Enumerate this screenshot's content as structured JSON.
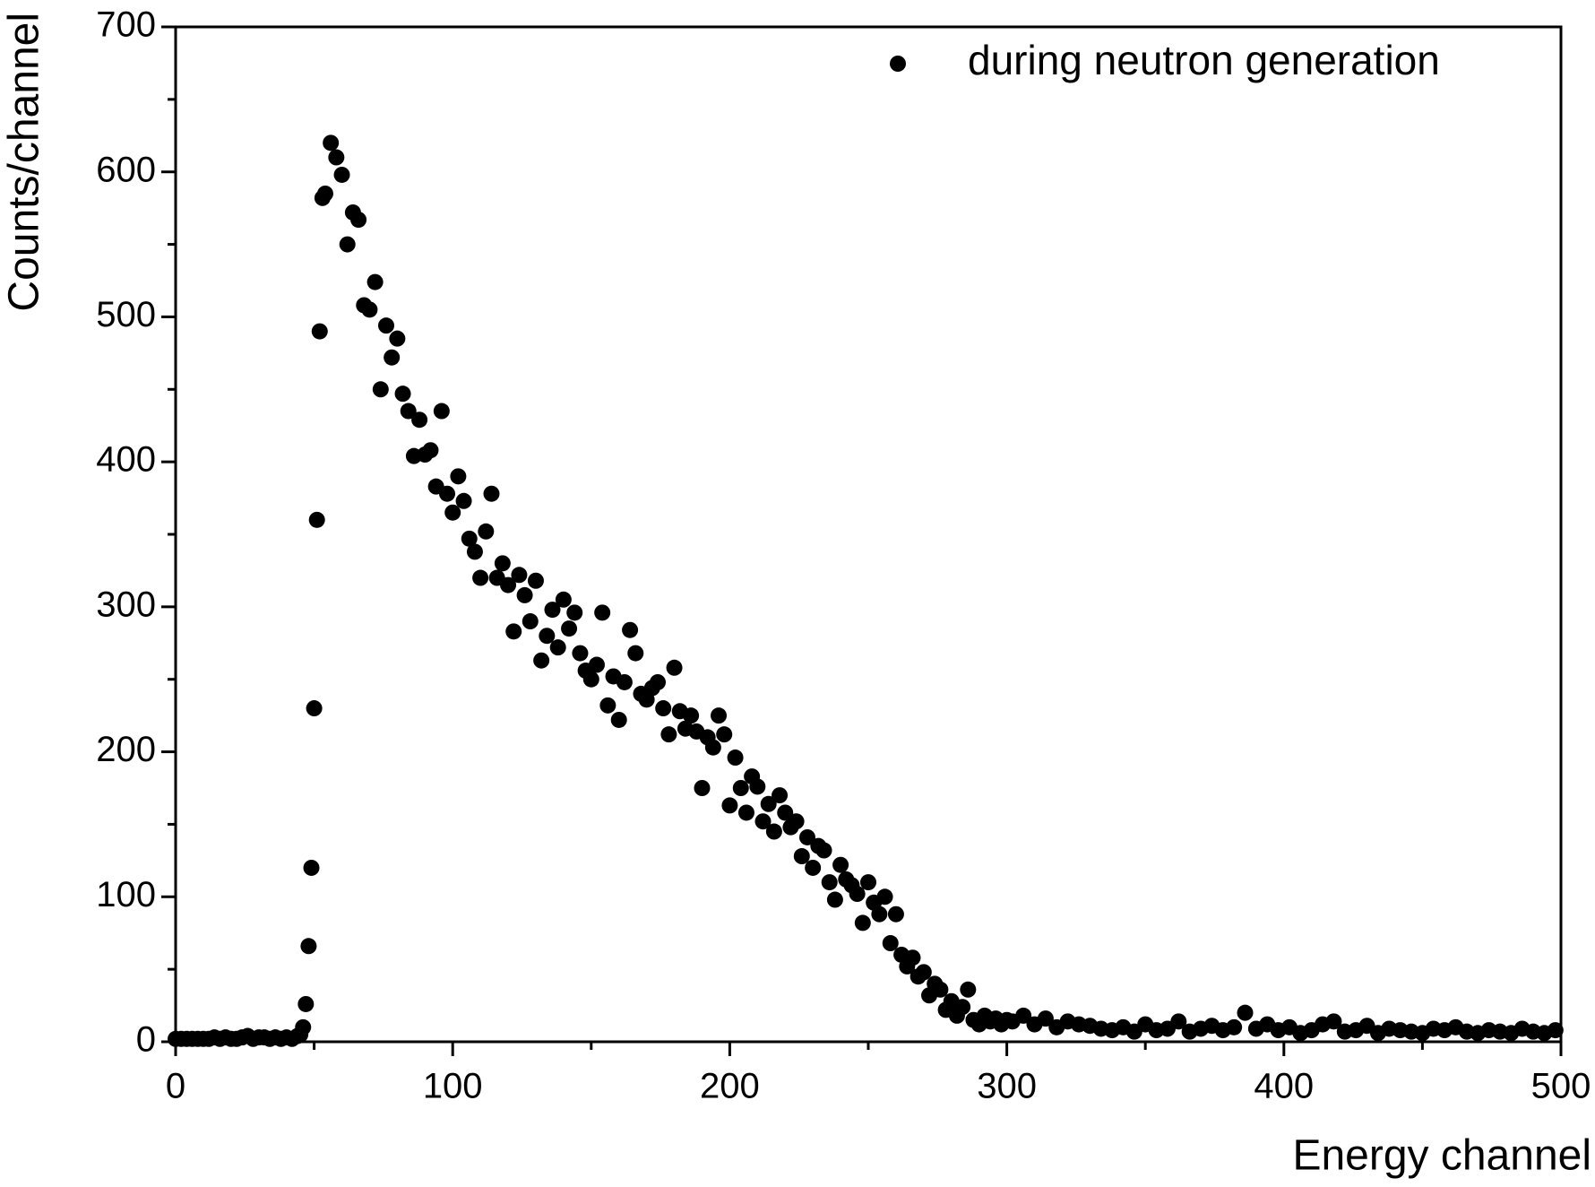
{
  "chart_data": {
    "type": "scatter",
    "xlabel": "Energy channel",
    "ylabel": "Counts/channel",
    "x": [
      0,
      2,
      4,
      6,
      8,
      10,
      12,
      14,
      16,
      18,
      20,
      22,
      24,
      26,
      28,
      30,
      32,
      34,
      36,
      38,
      40,
      42,
      44,
      45,
      46,
      47,
      48,
      49,
      50,
      51,
      52,
      53,
      54,
      56,
      58,
      60,
      62,
      64,
      66,
      68,
      70,
      72,
      74,
      76,
      78,
      80,
      82,
      84,
      86,
      88,
      90,
      92,
      94,
      96,
      98,
      100,
      102,
      104,
      106,
      108,
      110,
      112,
      114,
      116,
      118,
      120,
      122,
      124,
      126,
      128,
      130,
      132,
      134,
      136,
      138,
      140,
      142,
      144,
      146,
      148,
      150,
      152,
      154,
      156,
      158,
      160,
      162,
      164,
      166,
      168,
      170,
      172,
      174,
      176,
      178,
      180,
      182,
      184,
      186,
      188,
      190,
      192,
      194,
      196,
      198,
      200,
      202,
      204,
      206,
      208,
      210,
      212,
      214,
      216,
      218,
      220,
      222,
      224,
      226,
      228,
      230,
      232,
      234,
      236,
      238,
      240,
      242,
      244,
      246,
      248,
      250,
      252,
      254,
      256,
      258,
      260,
      262,
      264,
      266,
      268,
      270,
      272,
      274,
      276,
      278,
      280,
      282,
      284,
      286,
      288,
      290,
      292,
      294,
      296,
      298,
      300,
      302,
      306,
      310,
      314,
      318,
      322,
      326,
      330,
      334,
      338,
      342,
      346,
      350,
      354,
      358,
      362,
      366,
      370,
      374,
      378,
      382,
      386,
      390,
      394,
      398,
      402,
      406,
      410,
      414,
      418,
      422,
      426,
      430,
      434,
      438,
      442,
      446,
      450,
      454,
      458,
      462,
      466,
      470,
      474,
      478,
      482,
      486,
      490,
      494,
      498
    ],
    "series": [
      {
        "name": "during neutron generation",
        "color": "#000000",
        "values": [
          2,
          2,
          2,
          2,
          2,
          2,
          2,
          3,
          2,
          3,
          2,
          2,
          3,
          4,
          2,
          3,
          3,
          2,
          3,
          2,
          3,
          2,
          4,
          5,
          10,
          26,
          66,
          120,
          230,
          360,
          490,
          582,
          585,
          620,
          610,
          598,
          550,
          572,
          567,
          508,
          505,
          524,
          450,
          494,
          472,
          485,
          447,
          435,
          404,
          429,
          405,
          408,
          383,
          435,
          378,
          365,
          390,
          373,
          347,
          338,
          320,
          352,
          378,
          320,
          330,
          315,
          283,
          322,
          308,
          290,
          318,
          263,
          280,
          298,
          272,
          305,
          285,
          296,
          268,
          256,
          250,
          260,
          296,
          232,
          252,
          222,
          248,
          284,
          268,
          240,
          236,
          244,
          248,
          230,
          212,
          258,
          228,
          216,
          225,
          214,
          175,
          210,
          203,
          225,
          212,
          163,
          196,
          175,
          158,
          183,
          176,
          152,
          164,
          145,
          170,
          158,
          148,
          152,
          128,
          141,
          120,
          135,
          132,
          110,
          98,
          122,
          112,
          108,
          102,
          82,
          110,
          96,
          88,
          100,
          68,
          88,
          60,
          52,
          58,
          45,
          48,
          32,
          40,
          36,
          22,
          28,
          18,
          24,
          36,
          15,
          12,
          18,
          14,
          16,
          12,
          15,
          14,
          18,
          12,
          16,
          10,
          14,
          12,
          11,
          9,
          8,
          10,
          7,
          12,
          8,
          9,
          14,
          7,
          9,
          11,
          8,
          10,
          20,
          9,
          12,
          8,
          10,
          6,
          8,
          12,
          14,
          7,
          8,
          11,
          6,
          9,
          8,
          7,
          6,
          9,
          8,
          10,
          7,
          6,
          8,
          7,
          6,
          9,
          7,
          6,
          8
        ]
      }
    ],
    "xlim": [
      0,
      500
    ],
    "xticks": [
      0,
      100,
      200,
      300,
      400,
      500
    ],
    "ylim": [
      0,
      700
    ],
    "yticks": [
      0,
      100,
      200,
      300,
      400,
      500,
      600,
      700
    ],
    "legend": "upper right"
  }
}
